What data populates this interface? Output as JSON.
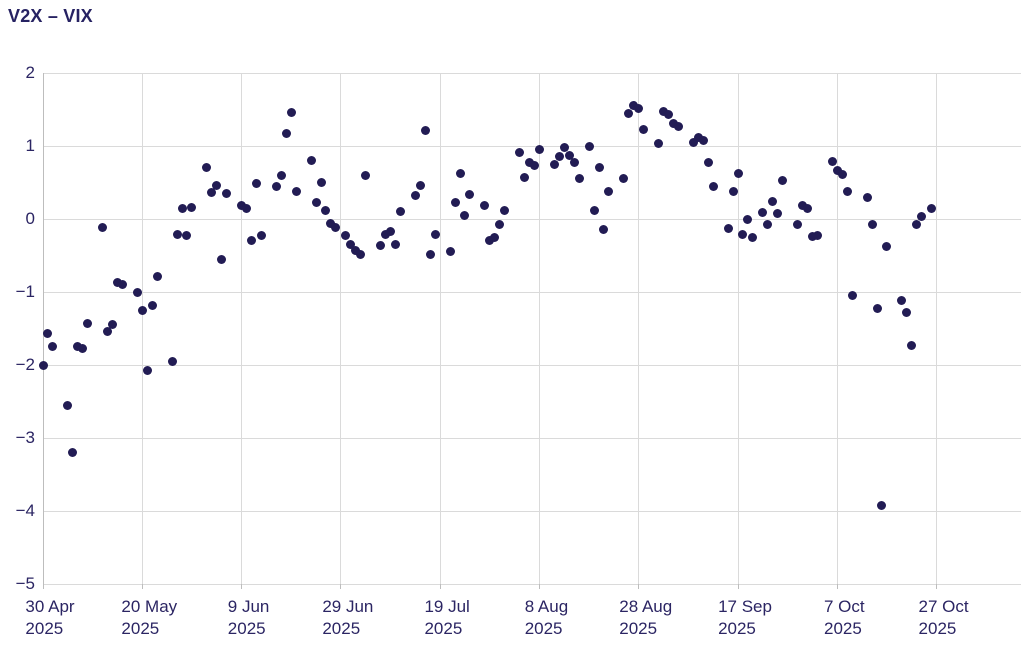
{
  "header": {
    "title": "V2X – VIX"
  },
  "colors": {
    "title_text": "#262262",
    "tick_label_text": "#2b2563",
    "dot": "#221c54",
    "gridline": "#dadada",
    "axis_line": "#bdbdbd",
    "background": "#ffffff"
  },
  "chart_data": {
    "type": "scatter",
    "title": "V2X – VIX",
    "xlabel": "",
    "ylabel": "",
    "grid": true,
    "legend": "none",
    "y_axis": {
      "range": [
        -5,
        2
      ],
      "tick_values": [
        2,
        1,
        0,
        -1,
        -2,
        -3,
        -4,
        -5
      ],
      "tick_labels": [
        "2",
        "1",
        "0",
        "−1",
        "−2",
        "−3",
        "−4",
        "−5"
      ]
    },
    "x_axis": {
      "start_date": "2025-04-30",
      "domain_days": [
        0,
        197
      ],
      "tick_day_offsets": [
        0,
        20,
        40,
        60,
        80,
        100,
        120,
        140,
        160,
        180
      ],
      "tick_labels_line1": [
        "30 Apr",
        "20 May",
        "9 Jun",
        "29 Jun",
        "19 Jul",
        "8 Aug",
        "28 Aug",
        "17 Sep",
        "7 Oct",
        "27 Oct"
      ],
      "tick_labels_line2": [
        "2025",
        "2025",
        "2025",
        "2025",
        "2025",
        "2025",
        "2025",
        "2025",
        "2025",
        "2025"
      ]
    },
    "points_format": [
      "day_offset_from_2025-04-30",
      "value"
    ],
    "points": [
      [
        0,
        -2.0
      ],
      [
        1,
        -1.57
      ],
      [
        2,
        -1.75
      ],
      [
        5,
        -2.56
      ],
      [
        6,
        -3.2
      ],
      [
        7,
        -1.74
      ],
      [
        8,
        -1.77
      ],
      [
        9,
        -1.43
      ],
      [
        12,
        -0.12
      ],
      [
        13,
        -1.54
      ],
      [
        14,
        -1.44
      ],
      [
        15,
        -0.87
      ],
      [
        16,
        -0.9
      ],
      [
        19,
        -1.01
      ],
      [
        20,
        -1.26
      ],
      [
        21,
        -2.07
      ],
      [
        22,
        -1.18
      ],
      [
        23,
        -0.79
      ],
      [
        26,
        -1.95
      ],
      [
        27,
        -0.21
      ],
      [
        28,
        0.15
      ],
      [
        29,
        -0.22
      ],
      [
        30,
        0.16
      ],
      [
        33,
        0.7
      ],
      [
        34,
        0.36
      ],
      [
        35,
        0.46
      ],
      [
        36,
        -0.56
      ],
      [
        37,
        0.35
      ],
      [
        40,
        0.18
      ],
      [
        41,
        0.14
      ],
      [
        42,
        -0.3
      ],
      [
        43,
        0.48
      ],
      [
        44,
        -0.23
      ],
      [
        47,
        0.45
      ],
      [
        48,
        0.6
      ],
      [
        49,
        1.17
      ],
      [
        50,
        1.46
      ],
      [
        51,
        0.38
      ],
      [
        54,
        0.8
      ],
      [
        55,
        0.22
      ],
      [
        56,
        0.5
      ],
      [
        57,
        0.12
      ],
      [
        58,
        -0.06
      ],
      [
        59,
        -0.11
      ],
      [
        61,
        -0.22
      ],
      [
        62,
        -0.35
      ],
      [
        63,
        -0.43
      ],
      [
        64,
        -0.49
      ],
      [
        65,
        0.6
      ],
      [
        68,
        -0.36
      ],
      [
        69,
        -0.21
      ],
      [
        70,
        -0.17
      ],
      [
        71,
        -0.35
      ],
      [
        72,
        0.1
      ],
      [
        75,
        0.32
      ],
      [
        76,
        0.46
      ],
      [
        77,
        1.21
      ],
      [
        78,
        -0.49
      ],
      [
        79,
        -0.21
      ],
      [
        82,
        -0.45
      ],
      [
        83,
        0.23
      ],
      [
        84,
        0.63
      ],
      [
        85,
        0.05
      ],
      [
        86,
        0.33
      ],
      [
        89,
        0.19
      ],
      [
        90,
        -0.29
      ],
      [
        91,
        -0.26
      ],
      [
        92,
        -0.07
      ],
      [
        93,
        0.12
      ],
      [
        96,
        0.91
      ],
      [
        97,
        0.57
      ],
      [
        98,
        0.78
      ],
      [
        99,
        0.73
      ],
      [
        100,
        0.95
      ],
      [
        103,
        0.75
      ],
      [
        104,
        0.85
      ],
      [
        105,
        0.98
      ],
      [
        106,
        0.87
      ],
      [
        107,
        0.78
      ],
      [
        108,
        0.55
      ],
      [
        110,
        1.0
      ],
      [
        111,
        0.11
      ],
      [
        112,
        0.7
      ],
      [
        113,
        -0.14
      ],
      [
        114,
        0.37
      ],
      [
        117,
        0.56
      ],
      [
        118,
        1.44
      ],
      [
        119,
        1.55
      ],
      [
        120,
        1.52
      ],
      [
        121,
        1.22
      ],
      [
        124,
        1.04
      ],
      [
        125,
        1.47
      ],
      [
        126,
        1.43
      ],
      [
        127,
        1.31
      ],
      [
        128,
        1.27
      ],
      [
        131,
        1.05
      ],
      [
        132,
        1.11
      ],
      [
        133,
        1.08
      ],
      [
        134,
        0.77
      ],
      [
        135,
        0.45
      ],
      [
        138,
        -0.13
      ],
      [
        139,
        0.37
      ],
      [
        140,
        0.63
      ],
      [
        141,
        -0.21
      ],
      [
        142,
        0.0
      ],
      [
        143,
        -0.25
      ],
      [
        145,
        0.09
      ],
      [
        146,
        -0.08
      ],
      [
        147,
        0.24
      ],
      [
        148,
        0.08
      ],
      [
        149,
        0.53
      ],
      [
        152,
        -0.08
      ],
      [
        153,
        0.19
      ],
      [
        154,
        0.15
      ],
      [
        155,
        -0.24
      ],
      [
        156,
        -0.23
      ],
      [
        159,
        0.79
      ],
      [
        160,
        0.66
      ],
      [
        161,
        0.61
      ],
      [
        162,
        0.38
      ],
      [
        163,
        -1.05
      ],
      [
        166,
        0.29
      ],
      [
        167,
        -0.07
      ],
      [
        168,
        -1.23
      ],
      [
        169,
        -3.93
      ],
      [
        170,
        -0.37
      ],
      [
        173,
        -1.11
      ],
      [
        174,
        -1.28
      ],
      [
        175,
        -1.73
      ],
      [
        176,
        -0.07
      ],
      [
        177,
        0.03
      ],
      [
        179,
        0.14
      ]
    ]
  }
}
